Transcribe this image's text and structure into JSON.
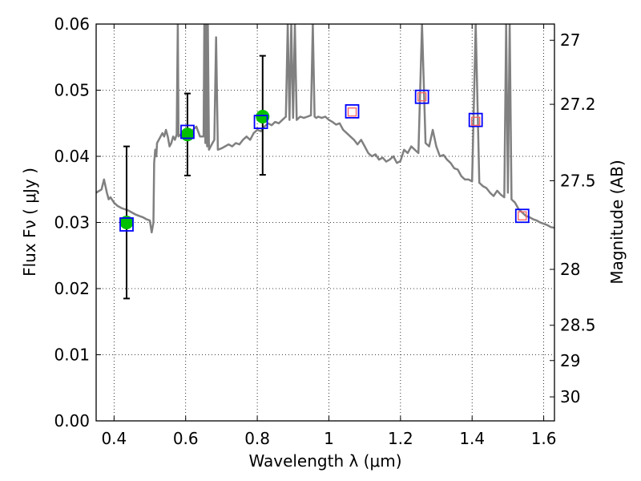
{
  "chart_data": {
    "type": "scatter",
    "xlabel": "Wavelength  λ (μm)",
    "ylabel": "Flux  Fν  ( μJy )",
    "y2label": "Magnitude (AB)",
    "xlim": [
      0.35,
      1.63
    ],
    "ylim": [
      0.0,
      0.06
    ],
    "grid": true,
    "x_ticks": [
      {
        "value": 0.4,
        "label": "0.4"
      },
      {
        "value": 0.6,
        "label": "0.6"
      },
      {
        "value": 0.8,
        "label": "0.8"
      },
      {
        "value": 1.0,
        "label": "1"
      },
      {
        "value": 1.2,
        "label": "1.2"
      },
      {
        "value": 1.4,
        "label": "1.4"
      },
      {
        "value": 1.6,
        "label": "1.6"
      }
    ],
    "y_ticks": [
      {
        "value": 0.0,
        "label": "0.00"
      },
      {
        "value": 0.01,
        "label": "0.01"
      },
      {
        "value": 0.02,
        "label": "0.02"
      },
      {
        "value": 0.03,
        "label": "0.03"
      },
      {
        "value": 0.04,
        "label": "0.04"
      },
      {
        "value": 0.05,
        "label": "0.05"
      },
      {
        "value": 0.06,
        "label": "0.06"
      }
    ],
    "y2_ticks": [
      {
        "value": 27.0,
        "label": "27"
      },
      {
        "value": 27.2,
        "label": "27.2"
      },
      {
        "value": 27.5,
        "label": "27.5"
      },
      {
        "value": 28.0,
        "label": "28"
      },
      {
        "value": 28.5,
        "label": "28.5"
      },
      {
        "value": 29.0,
        "label": "29"
      },
      {
        "value": 30.0,
        "label": "30"
      }
    ],
    "series": [
      {
        "name": "model-spectrum",
        "kind": "line",
        "color": "#808080",
        "x": [
          0.35,
          0.365,
          0.372,
          0.38,
          0.385,
          0.39,
          0.4,
          0.41,
          0.42,
          0.43,
          0.44,
          0.45,
          0.46,
          0.47,
          0.48,
          0.49,
          0.5,
          0.505,
          0.51,
          0.512,
          0.515,
          0.518,
          0.52,
          0.525,
          0.53,
          0.535,
          0.54,
          0.545,
          0.55,
          0.555,
          0.56,
          0.565,
          0.57,
          0.575,
          0.578,
          0.58,
          0.59,
          0.6,
          0.61,
          0.62,
          0.63,
          0.64,
          0.65,
          0.652,
          0.655,
          0.657,
          0.66,
          0.662,
          0.665,
          0.67,
          0.675,
          0.68,
          0.685,
          0.69,
          0.7,
          0.71,
          0.72,
          0.73,
          0.74,
          0.75,
          0.76,
          0.77,
          0.78,
          0.79,
          0.8,
          0.81,
          0.82,
          0.83,
          0.84,
          0.85,
          0.86,
          0.87,
          0.88,
          0.885,
          0.89,
          0.895,
          0.9,
          0.905,
          0.91,
          0.92,
          0.93,
          0.94,
          0.95,
          0.955,
          0.96,
          0.965,
          0.97,
          0.98,
          0.99,
          1.0,
          1.01,
          1.02,
          1.03,
          1.04,
          1.05,
          1.06,
          1.07,
          1.08,
          1.09,
          1.1,
          1.11,
          1.12,
          1.13,
          1.14,
          1.15,
          1.16,
          1.17,
          1.18,
          1.19,
          1.2,
          1.21,
          1.22,
          1.23,
          1.24,
          1.25,
          1.26,
          1.27,
          1.28,
          1.29,
          1.3,
          1.31,
          1.32,
          1.33,
          1.34,
          1.35,
          1.36,
          1.37,
          1.38,
          1.39,
          1.4,
          1.41,
          1.42,
          1.43,
          1.44,
          1.45,
          1.46,
          1.47,
          1.48,
          1.49,
          1.495,
          1.5,
          1.505,
          1.51,
          1.52,
          1.53,
          1.54,
          1.55,
          1.56,
          1.57,
          1.58,
          1.59,
          1.6,
          1.61,
          1.62,
          1.63
        ],
        "y": [
          0.0345,
          0.035,
          0.0365,
          0.0345,
          0.0335,
          0.0338,
          0.033,
          0.0325,
          0.0322,
          0.032,
          0.0318,
          0.0315,
          0.0312,
          0.031,
          0.0308,
          0.0305,
          0.0303,
          0.0285,
          0.03,
          0.039,
          0.041,
          0.04,
          0.042,
          0.0425,
          0.043,
          0.0435,
          0.043,
          0.044,
          0.043,
          0.0415,
          0.042,
          0.043,
          0.0425,
          0.0433,
          0.06,
          0.043,
          0.0435,
          0.044,
          0.0433,
          0.044,
          0.0445,
          0.043,
          0.043,
          0.06,
          0.042,
          0.06,
          0.0415,
          0.06,
          0.041,
          0.0415,
          0.042,
          0.0425,
          0.058,
          0.041,
          0.0412,
          0.0415,
          0.0418,
          0.0415,
          0.042,
          0.0418,
          0.0425,
          0.043,
          0.0425,
          0.0435,
          0.044,
          0.0438,
          0.0445,
          0.045,
          0.0447,
          0.0452,
          0.045,
          0.0455,
          0.046,
          0.06,
          0.0455,
          0.06,
          0.0458,
          0.06,
          0.0455,
          0.046,
          0.0458,
          0.046,
          0.0462,
          0.06,
          0.046,
          0.0458,
          0.046,
          0.0458,
          0.046,
          0.0455,
          0.0452,
          0.0448,
          0.045,
          0.044,
          0.0435,
          0.043,
          0.0425,
          0.0418,
          0.0425,
          0.0415,
          0.0405,
          0.04,
          0.0403,
          0.0395,
          0.0398,
          0.0392,
          0.0395,
          0.04,
          0.039,
          0.0393,
          0.041,
          0.0405,
          0.0415,
          0.041,
          0.0405,
          0.06,
          0.042,
          0.0415,
          0.044,
          0.0415,
          0.04,
          0.0402,
          0.0395,
          0.039,
          0.0382,
          0.038,
          0.037,
          0.0365,
          0.0365,
          0.0362,
          0.06,
          0.036,
          0.0355,
          0.0352,
          0.0345,
          0.034,
          0.0348,
          0.0342,
          0.0338,
          0.06,
          0.0345,
          0.06,
          0.0335,
          0.033,
          0.032,
          0.0315,
          0.031,
          0.0308,
          0.0305,
          0.0303,
          0.03,
          0.0298,
          0.0296,
          0.0293,
          0.0292
        ]
      },
      {
        "name": "observed-photometry",
        "kind": "errorbar-points",
        "marker": "circle",
        "color": "#00c000",
        "points": [
          {
            "x": 0.435,
            "y": 0.03,
            "yerr_low": 0.0115,
            "yerr_high": 0.0115
          },
          {
            "x": 0.605,
            "y": 0.0433,
            "yerr_low": 0.0062,
            "yerr_high": 0.0062
          },
          {
            "x": 0.815,
            "y": 0.046,
            "yerr_low": 0.0088,
            "yerr_high": 0.0092
          }
        ]
      },
      {
        "name": "model-bandpass-flux",
        "kind": "points",
        "marker": "open-square",
        "color": "#0000ff",
        "x": [
          0.435,
          0.605,
          0.81,
          1.065,
          1.26,
          1.41,
          1.54
        ],
        "y": [
          0.0297,
          0.0437,
          0.0452,
          0.0468,
          0.049,
          0.0455,
          0.031
        ]
      },
      {
        "name": "model-bandpass-flux-inner",
        "kind": "points",
        "marker": "small-open-square",
        "color": "#ff6060",
        "x": [
          1.065,
          1.26,
          1.41,
          1.54
        ],
        "y": [
          0.0467,
          0.049,
          0.0453,
          0.031
        ]
      }
    ]
  }
}
